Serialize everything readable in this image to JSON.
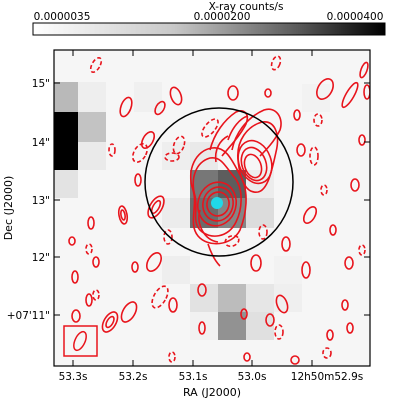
{
  "colorbar": {
    "title": "X-ray counts/s",
    "ticks": [
      "0.0000035",
      "0.0000200",
      "0.0000400"
    ],
    "colormap": "grayscale"
  },
  "axes": {
    "xlabel": "RA (J2000)",
    "ylabel": "Dec (J2000)",
    "xticks": [
      "53.3s",
      "53.2s",
      "53.1s",
      "53.0s",
      "12h50m52.9s"
    ],
    "yticks": [
      "15\"",
      "14\"",
      "13\"",
      "12\"",
      "+07'11\""
    ]
  },
  "colors": {
    "contour": "#e8141c",
    "marker": "#20d8e8",
    "circle": "#000000",
    "frame": "#000000"
  }
}
